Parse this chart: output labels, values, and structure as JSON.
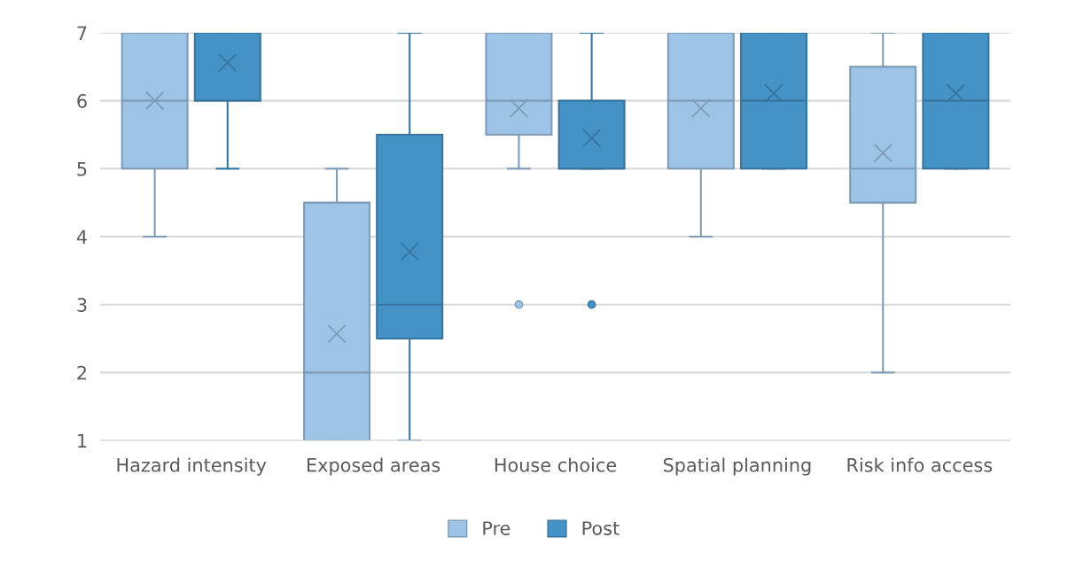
{
  "chart_data": {
    "type": "box",
    "categories": [
      "Hazard intensity",
      "Exposed areas",
      "House choice",
      "Spatial planning",
      "Risk info access"
    ],
    "series": [
      {
        "name": "Pre",
        "color": "#9dc3e6",
        "boxes": [
          {
            "low": 4,
            "q1": 5,
            "median": 6,
            "q3": 7,
            "high": 7,
            "mean": 6.0
          },
          {
            "low": 1,
            "q1": 1,
            "median": 2,
            "q3": 4.5,
            "high": 5,
            "mean": 2.57
          },
          {
            "low": 5,
            "q1": 5.5,
            "median": 6,
            "q3": 7,
            "high": 7,
            "mean": 5.89,
            "outliers": [
              3
            ]
          },
          {
            "low": 4,
            "q1": 5,
            "median": 6,
            "q3": 7,
            "high": 7,
            "mean": 5.89
          },
          {
            "low": 2,
            "q1": 4.5,
            "median": 5,
            "q3": 6.5,
            "high": 7,
            "mean": 5.23
          }
        ]
      },
      {
        "name": "Post",
        "color": "#4592c6",
        "boxes": [
          {
            "low": 5,
            "q1": 6,
            "median": 7,
            "q3": 7,
            "high": 7,
            "mean": 6.56
          },
          {
            "low": 1,
            "q1": 2.5,
            "median": 3,
            "q3": 5.5,
            "high": 7,
            "mean": 3.78
          },
          {
            "low": 5,
            "q1": 5,
            "median": 5,
            "q3": 6,
            "high": 7,
            "mean": 5.45,
            "outliers": [
              3
            ]
          },
          {
            "low": 5,
            "q1": 5,
            "median": 6,
            "q3": 7,
            "high": 7,
            "mean": 6.11
          },
          {
            "low": 5,
            "q1": 5,
            "median": 6,
            "q3": 7,
            "high": 7,
            "mean": 6.11
          }
        ]
      }
    ],
    "ylim": [
      1,
      7
    ],
    "yticks": [
      1,
      2,
      3,
      4,
      5,
      6,
      7
    ],
    "grid": "y",
    "legend": "bottom"
  }
}
